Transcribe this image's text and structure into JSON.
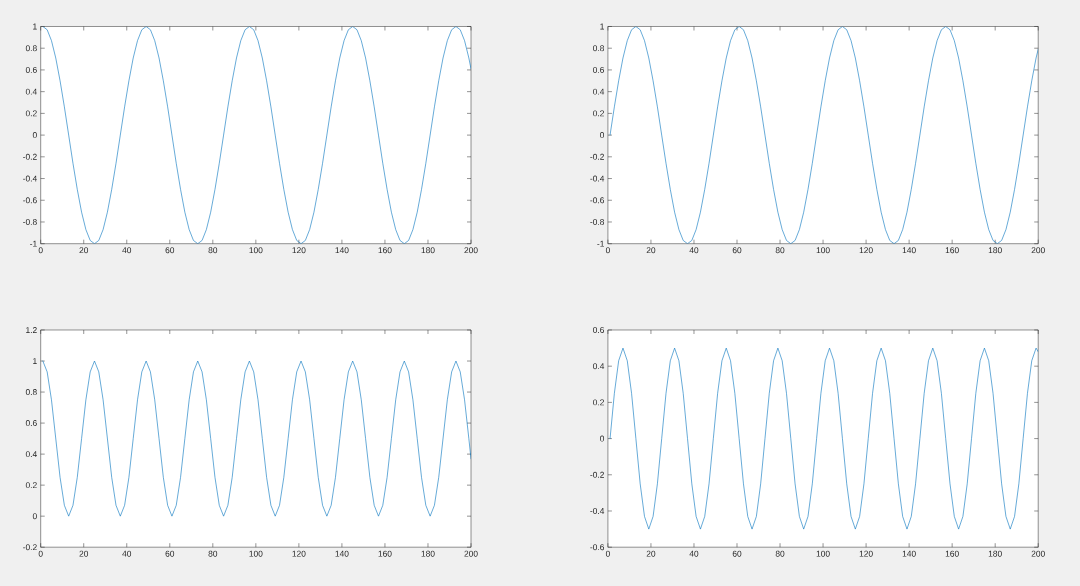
{
  "chart_data": [
    {
      "type": "line",
      "color": "#0072bd",
      "xlim": [
        0,
        200
      ],
      "ylim": [
        -1,
        1
      ],
      "xticks": [
        0,
        20,
        40,
        60,
        80,
        100,
        120,
        140,
        160,
        180,
        200
      ],
      "yticks": [
        -1,
        -0.8,
        -0.6,
        -0.4,
        -0.2,
        0,
        0.2,
        0.4,
        0.6,
        0.8,
        1
      ],
      "x": [
        1,
        3,
        5,
        7,
        9,
        11,
        13,
        15,
        17,
        19,
        21,
        23,
        25,
        27,
        29,
        31,
        33,
        35,
        37,
        39,
        41,
        43,
        45,
        47,
        49,
        51,
        53,
        55,
        57,
        59,
        61,
        63,
        65,
        67,
        69,
        71,
        73,
        75,
        77,
        79,
        81,
        83,
        85,
        87,
        89,
        91,
        93,
        95,
        97,
        99,
        101,
        103,
        105,
        107,
        109,
        111,
        113,
        115,
        117,
        119,
        121,
        123,
        125,
        127,
        129,
        131,
        133,
        135,
        137,
        139,
        141,
        143,
        145,
        147,
        149,
        151,
        153,
        155,
        157,
        159,
        161,
        163,
        165,
        167,
        169,
        171,
        173,
        175,
        177,
        179,
        181,
        183,
        185,
        187,
        189,
        191,
        193,
        195,
        197,
        199,
        200
      ],
      "values": [
        1,
        0.97,
        0.87,
        0.71,
        0.5,
        0.26,
        0,
        -0.26,
        -0.5,
        -0.71,
        -0.87,
        -0.97,
        -1,
        -0.97,
        -0.87,
        -0.71,
        -0.5,
        -0.26,
        0,
        0.26,
        0.5,
        0.71,
        0.87,
        0.97,
        1,
        0.97,
        0.87,
        0.71,
        0.5,
        0.26,
        0,
        -0.26,
        -0.5,
        -0.71,
        -0.87,
        -0.97,
        -1,
        -0.97,
        -0.87,
        -0.71,
        -0.5,
        -0.26,
        0,
        0.26,
        0.5,
        0.71,
        0.87,
        0.97,
        1,
        0.97,
        0.87,
        0.71,
        0.5,
        0.26,
        0,
        -0.26,
        -0.5,
        -0.71,
        -0.87,
        -0.97,
        -1,
        -0.97,
        -0.87,
        -0.71,
        -0.5,
        -0.26,
        0,
        0.26,
        0.5,
        0.71,
        0.87,
        0.97,
        1,
        0.97,
        0.87,
        0.71,
        0.5,
        0.26,
        0,
        -0.26,
        -0.5,
        -0.71,
        -0.87,
        -0.97,
        -1,
        -0.97,
        -0.87,
        -0.71,
        -0.5,
        -0.26,
        0,
        0.26,
        0.5,
        0.71,
        0.87,
        0.97,
        1,
        0.97,
        0.87,
        0.71,
        0.61
      ]
    },
    {
      "type": "line",
      "color": "#0072bd",
      "xlim": [
        0,
        200
      ],
      "ylim": [
        -1,
        1
      ],
      "xticks": [
        0,
        20,
        40,
        60,
        80,
        100,
        120,
        140,
        160,
        180,
        200
      ],
      "yticks": [
        -1,
        -0.8,
        -0.6,
        -0.4,
        -0.2,
        0,
        0.2,
        0.4,
        0.6,
        0.8,
        1
      ],
      "x": [
        1,
        3,
        5,
        7,
        9,
        11,
        13,
        15,
        17,
        19,
        21,
        23,
        25,
        27,
        29,
        31,
        33,
        35,
        37,
        39,
        41,
        43,
        45,
        47,
        49,
        51,
        53,
        55,
        57,
        59,
        61,
        63,
        65,
        67,
        69,
        71,
        73,
        75,
        77,
        79,
        81,
        83,
        85,
        87,
        89,
        91,
        93,
        95,
        97,
        99,
        101,
        103,
        105,
        107,
        109,
        111,
        113,
        115,
        117,
        119,
        121,
        123,
        125,
        127,
        129,
        131,
        133,
        135,
        137,
        139,
        141,
        143,
        145,
        147,
        149,
        151,
        153,
        155,
        157,
        159,
        161,
        163,
        165,
        167,
        169,
        171,
        173,
        175,
        177,
        179,
        181,
        183,
        185,
        187,
        189,
        191,
        193,
        195,
        197,
        199,
        200
      ],
      "values": [
        0,
        0.26,
        0.5,
        0.71,
        0.87,
        0.97,
        1,
        0.97,
        0.87,
        0.71,
        0.5,
        0.26,
        0,
        -0.26,
        -0.5,
        -0.71,
        -0.87,
        -0.97,
        -1,
        -0.97,
        -0.87,
        -0.71,
        -0.5,
        -0.26,
        0,
        0.26,
        0.5,
        0.71,
        0.87,
        0.97,
        1,
        0.97,
        0.87,
        0.71,
        0.5,
        0.26,
        0,
        -0.26,
        -0.5,
        -0.71,
        -0.87,
        -0.97,
        -1,
        -0.97,
        -0.87,
        -0.71,
        -0.5,
        -0.26,
        0,
        0.26,
        0.5,
        0.71,
        0.87,
        0.97,
        1,
        0.97,
        0.87,
        0.71,
        0.5,
        0.26,
        0,
        -0.26,
        -0.5,
        -0.71,
        -0.87,
        -0.97,
        -1,
        -0.97,
        -0.87,
        -0.71,
        -0.5,
        -0.26,
        0,
        0.26,
        0.5,
        0.71,
        0.87,
        0.97,
        1,
        0.97,
        0.87,
        0.71,
        0.5,
        0.26,
        0,
        -0.26,
        -0.5,
        -0.71,
        -0.87,
        -0.97,
        -1,
        -0.97,
        -0.87,
        -0.71,
        -0.5,
        -0.26,
        0,
        0.26,
        0.5,
        0.71,
        0.79
      ]
    },
    {
      "type": "line",
      "color": "#0072bd",
      "xlim": [
        0,
        200
      ],
      "ylim": [
        -0.2,
        1.2
      ],
      "xticks": [
        0,
        20,
        40,
        60,
        80,
        100,
        120,
        140,
        160,
        180,
        200
      ],
      "yticks": [
        -0.2,
        0,
        0.2,
        0.4,
        0.6,
        0.8,
        1,
        1.2
      ],
      "x": [
        1,
        3,
        5,
        7,
        9,
        11,
        13,
        15,
        17,
        19,
        21,
        23,
        25,
        27,
        29,
        31,
        33,
        35,
        37,
        39,
        41,
        43,
        45,
        47,
        49,
        51,
        53,
        55,
        57,
        59,
        61,
        63,
        65,
        67,
        69,
        71,
        73,
        75,
        77,
        79,
        81,
        83,
        85,
        87,
        89,
        91,
        93,
        95,
        97,
        99,
        101,
        103,
        105,
        107,
        109,
        111,
        113,
        115,
        117,
        119,
        121,
        123,
        125,
        127,
        129,
        131,
        133,
        135,
        137,
        139,
        141,
        143,
        145,
        147,
        149,
        151,
        153,
        155,
        157,
        159,
        161,
        163,
        165,
        167,
        169,
        171,
        173,
        175,
        177,
        179,
        181,
        183,
        185,
        187,
        189,
        191,
        193,
        195,
        197,
        199,
        200
      ],
      "values": [
        1,
        0.93,
        0.75,
        0.5,
        0.25,
        0.07,
        0,
        0.07,
        0.25,
        0.5,
        0.75,
        0.93,
        1,
        0.93,
        0.75,
        0.5,
        0.25,
        0.07,
        0,
        0.07,
        0.25,
        0.5,
        0.75,
        0.93,
        1,
        0.93,
        0.75,
        0.5,
        0.25,
        0.07,
        0,
        0.07,
        0.25,
        0.5,
        0.75,
        0.93,
        1,
        0.93,
        0.75,
        0.5,
        0.25,
        0.07,
        0,
        0.07,
        0.25,
        0.5,
        0.75,
        0.93,
        1,
        0.93,
        0.75,
        0.5,
        0.25,
        0.07,
        0,
        0.07,
        0.25,
        0.5,
        0.75,
        0.93,
        1,
        0.93,
        0.75,
        0.5,
        0.25,
        0.07,
        0,
        0.07,
        0.25,
        0.5,
        0.75,
        0.93,
        1,
        0.93,
        0.75,
        0.5,
        0.25,
        0.07,
        0,
        0.07,
        0.25,
        0.5,
        0.75,
        0.93,
        1,
        0.93,
        0.75,
        0.5,
        0.25,
        0.07,
        0,
        0.07,
        0.25,
        0.5,
        0.75,
        0.93,
        1,
        0.93,
        0.75,
        0.5,
        0.37
      ]
    },
    {
      "type": "line",
      "color": "#0072bd",
      "xlim": [
        0,
        200
      ],
      "ylim": [
        -0.6,
        0.6
      ],
      "xticks": [
        0,
        20,
        40,
        60,
        80,
        100,
        120,
        140,
        160,
        180,
        200
      ],
      "yticks": [
        -0.6,
        -0.4,
        -0.2,
        0,
        0.2,
        0.4,
        0.6
      ],
      "x": [
        1,
        3,
        5,
        7,
        9,
        11,
        13,
        15,
        17,
        19,
        21,
        23,
        25,
        27,
        29,
        31,
        33,
        35,
        37,
        39,
        41,
        43,
        45,
        47,
        49,
        51,
        53,
        55,
        57,
        59,
        61,
        63,
        65,
        67,
        69,
        71,
        73,
        75,
        77,
        79,
        81,
        83,
        85,
        87,
        89,
        91,
        93,
        95,
        97,
        99,
        101,
        103,
        105,
        107,
        109,
        111,
        113,
        115,
        117,
        119,
        121,
        123,
        125,
        127,
        129,
        131,
        133,
        135,
        137,
        139,
        141,
        143,
        145,
        147,
        149,
        151,
        153,
        155,
        157,
        159,
        161,
        163,
        165,
        167,
        169,
        171,
        173,
        175,
        177,
        179,
        181,
        183,
        185,
        187,
        189,
        191,
        193,
        195,
        197,
        199,
        200
      ],
      "values": [
        0,
        0.25,
        0.43,
        0.5,
        0.43,
        0.25,
        0,
        -0.25,
        -0.43,
        -0.5,
        -0.43,
        -0.25,
        0,
        0.25,
        0.43,
        0.5,
        0.43,
        0.25,
        0,
        -0.25,
        -0.43,
        -0.5,
        -0.43,
        -0.25,
        0,
        0.25,
        0.43,
        0.5,
        0.43,
        0.25,
        0,
        -0.25,
        -0.43,
        -0.5,
        -0.43,
        -0.25,
        0,
        0.25,
        0.43,
        0.5,
        0.43,
        0.25,
        0,
        -0.25,
        -0.43,
        -0.5,
        -0.43,
        -0.25,
        0,
        0.25,
        0.43,
        0.5,
        0.43,
        0.25,
        0,
        -0.25,
        -0.43,
        -0.5,
        -0.43,
        -0.25,
        0,
        0.25,
        0.43,
        0.5,
        0.43,
        0.25,
        0,
        -0.25,
        -0.43,
        -0.5,
        -0.43,
        -0.25,
        0,
        0.25,
        0.43,
        0.5,
        0.43,
        0.25,
        0,
        -0.25,
        -0.43,
        -0.5,
        -0.43,
        -0.25,
        0,
        0.25,
        0.43,
        0.5,
        0.43,
        0.25,
        0,
        -0.25,
        -0.43,
        -0.5,
        -0.43,
        -0.25,
        0,
        0.25,
        0.43,
        0.5,
        0.48
      ]
    }
  ]
}
